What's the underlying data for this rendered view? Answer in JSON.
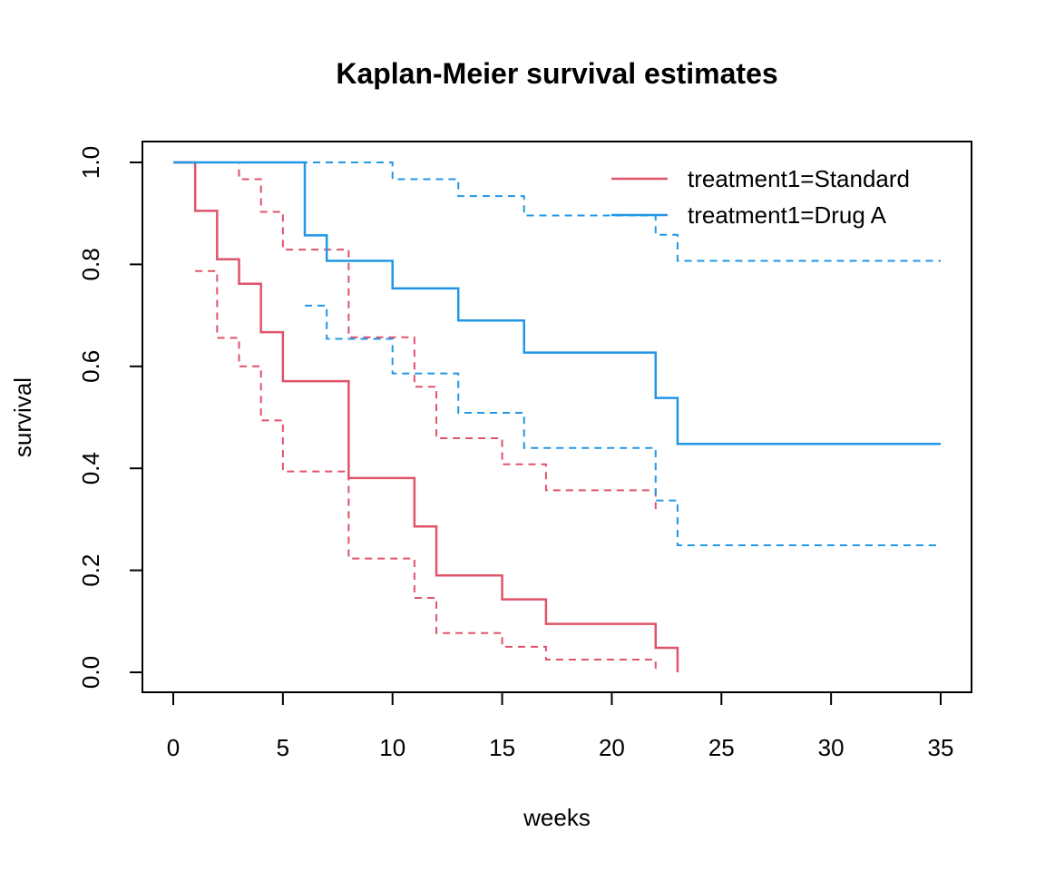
{
  "chart_data": {
    "type": "line",
    "title": "Kaplan-Meier survival estimates",
    "xlabel": "weeks",
    "ylabel": "survival",
    "xlim": [
      0,
      35
    ],
    "ylim": [
      0,
      1
    ],
    "x_ticks": [
      0,
      5,
      10,
      15,
      20,
      25,
      30,
      35
    ],
    "y_ticks": [
      "0.0",
      "0.2",
      "0.4",
      "0.6",
      "0.8",
      "1.0"
    ],
    "grid": false,
    "legend_position": "top-right",
    "series": [
      {
        "name": "treatment1=Standard",
        "color": "#DF536B",
        "estimate": [
          [
            0,
            1.0
          ],
          [
            1,
            0.905
          ],
          [
            2,
            0.81
          ],
          [
            3,
            0.762
          ],
          [
            4,
            0.667
          ],
          [
            5,
            0.571
          ],
          [
            8,
            0.381
          ],
          [
            11,
            0.286
          ],
          [
            12,
            0.19
          ],
          [
            15,
            0.143
          ],
          [
            17,
            0.095
          ],
          [
            22,
            0.048
          ],
          [
            23,
            0.0
          ]
        ],
        "ci_upper": [
          [
            1,
            1.0
          ],
          [
            2,
            1.0
          ],
          [
            3,
            0.967
          ],
          [
            4,
            0.903
          ],
          [
            5,
            0.829
          ],
          [
            8,
            0.657
          ],
          [
            11,
            0.56
          ],
          [
            12,
            0.459
          ],
          [
            15,
            0.408
          ],
          [
            17,
            0.357
          ],
          [
            22,
            0.32
          ]
        ],
        "ci_lower": [
          [
            1,
            0.787
          ],
          [
            2,
            0.656
          ],
          [
            3,
            0.6
          ],
          [
            4,
            0.494
          ],
          [
            5,
            0.394
          ],
          [
            8,
            0.223
          ],
          [
            11,
            0.146
          ],
          [
            12,
            0.077
          ],
          [
            15,
            0.05
          ],
          [
            17,
            0.025
          ],
          [
            22,
            0.005
          ]
        ]
      },
      {
        "name": "treatment1=Drug A",
        "color": "#2297E6",
        "estimate": [
          [
            0,
            1.0
          ],
          [
            6,
            0.857
          ],
          [
            7,
            0.807
          ],
          [
            10,
            0.753
          ],
          [
            13,
            0.69
          ],
          [
            16,
            0.627
          ],
          [
            22,
            0.538
          ],
          [
            23,
            0.448
          ],
          [
            35,
            0.448
          ]
        ],
        "ci_upper": [
          [
            0,
            1.0
          ],
          [
            10,
            0.967
          ],
          [
            13,
            0.934
          ],
          [
            16,
            0.896
          ],
          [
            22,
            0.858
          ],
          [
            23,
            0.807
          ],
          [
            35,
            0.807
          ]
        ],
        "ci_lower": [
          [
            6,
            0.719
          ],
          [
            7,
            0.654
          ],
          [
            10,
            0.586
          ],
          [
            13,
            0.509
          ],
          [
            16,
            0.44
          ],
          [
            22,
            0.337
          ],
          [
            23,
            0.249
          ],
          [
            35,
            0.249
          ]
        ]
      }
    ]
  }
}
